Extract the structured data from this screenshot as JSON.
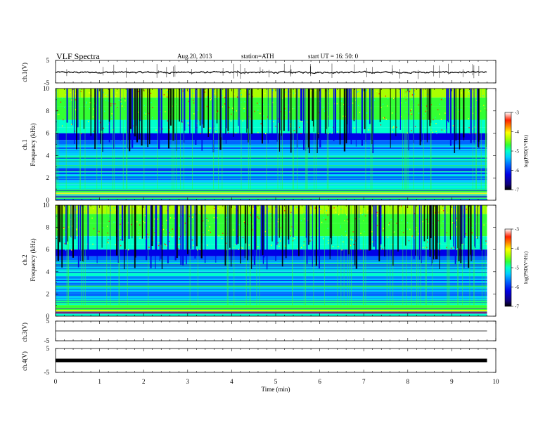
{
  "header": {
    "title": "VLF  Spectra",
    "date": "Aug.20, 2013",
    "station": "station=ATH",
    "start": "start  UT  =    16: 50: 0"
  },
  "colors": {
    "spectrum_scale": [
      "#000000",
      "#10007a",
      "#0000e6",
      "#0066ff",
      "#00ccff",
      "#00ffcc",
      "#33ff33",
      "#aaff00",
      "#ffff00",
      "#ff8800",
      "#ff2200",
      "#ffffff"
    ],
    "trace": "#000000"
  },
  "chart_data": [
    {
      "type": "line",
      "panel": "ch1-waveform",
      "ylabel": "ch.1(V)",
      "ylim": [
        -5,
        5
      ],
      "yticks": [
        "5",
        "-5"
      ],
      "x_range_min": [
        0,
        9.8
      ],
      "baseline_V": 0,
      "approx_spread_V": 1
    },
    {
      "type": "heatmap",
      "panel": "ch1-spectrogram",
      "ylabel": [
        "ch.1",
        "Frequency  (kHz)"
      ],
      "ylim": [
        0,
        10
      ],
      "yticks": [
        "0",
        "2",
        "4",
        "6",
        "8",
        "10"
      ],
      "x_range_min": [
        0,
        9.8
      ],
      "colorbar": {
        "label": "log(PSD(V²/Hz)",
        "range": [
          -7,
          -3
        ],
        "ticks": [
          "-3",
          "-4",
          "-5",
          "-6",
          "-7"
        ]
      }
    },
    {
      "type": "heatmap",
      "panel": "ch2-spectrogram",
      "ylabel": [
        "ch.2",
        "Frequency  (kHz)"
      ],
      "ylim": [
        0,
        10
      ],
      "yticks": [
        "0",
        "2",
        "4",
        "6",
        "8",
        "10"
      ],
      "x_range_min": [
        0,
        9.8
      ],
      "colorbar": {
        "label": "log(PSD(V²/Hz)",
        "range": [
          -7,
          -3
        ],
        "ticks": [
          "-3",
          "-4",
          "-5",
          "-6",
          "-7"
        ]
      }
    },
    {
      "type": "line",
      "panel": "ch3-waveform",
      "ylabel": "ch.3(V)",
      "ylim": [
        -5,
        5
      ],
      "yticks": [
        "5",
        "-5"
      ],
      "x_range_min": [
        0,
        9.8
      ],
      "baseline_V": 0
    },
    {
      "type": "line",
      "panel": "ch4-waveform",
      "ylabel": "ch.4(V)",
      "ylim": [
        -5,
        5
      ],
      "yticks": [
        "5",
        "-5"
      ],
      "x_range_min": [
        0,
        9.8
      ],
      "baseline_V": 0
    }
  ],
  "x_axis": {
    "label": "Time  (min)",
    "range": [
      0,
      10
    ],
    "ticks": [
      "0",
      "1",
      "2",
      "3",
      "4",
      "5",
      "6",
      "7",
      "8",
      "9",
      "10"
    ]
  }
}
